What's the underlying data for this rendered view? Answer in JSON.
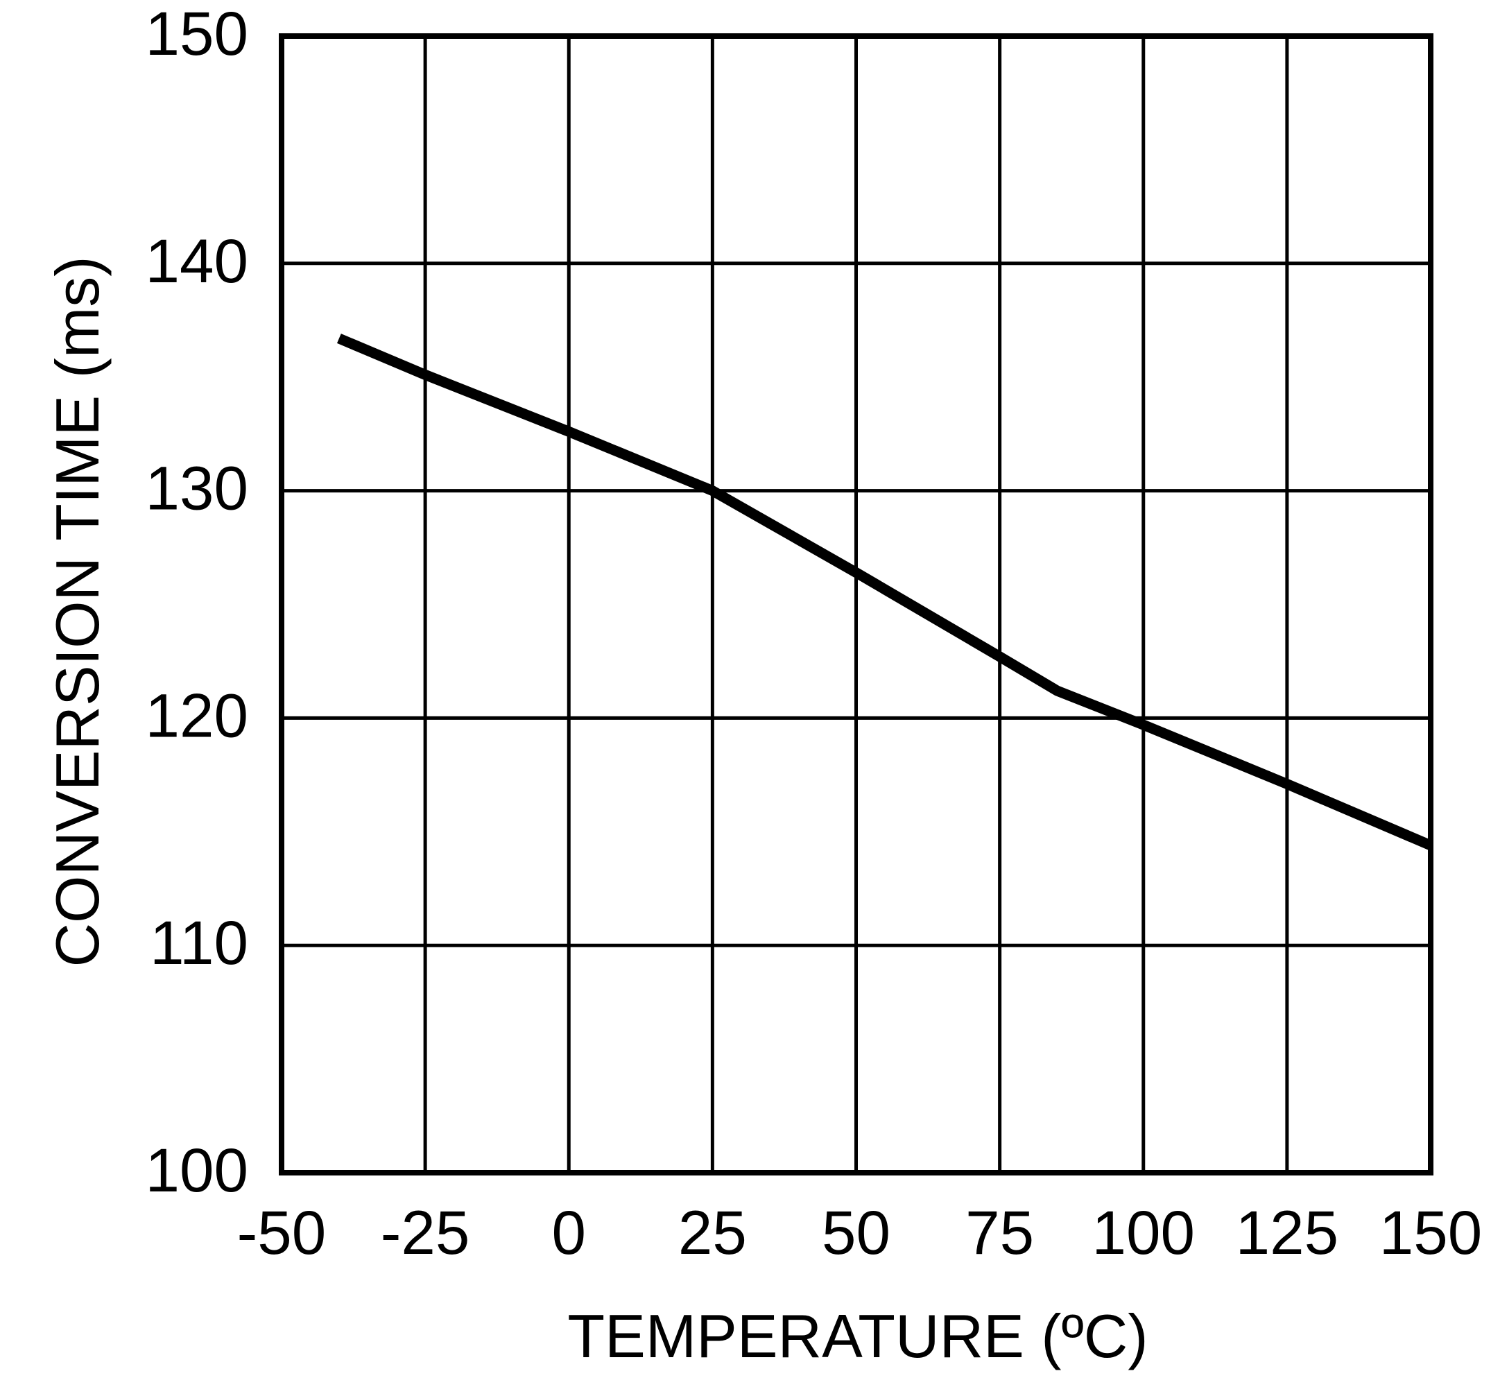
{
  "chart_data": {
    "type": "line",
    "title": "",
    "xlabel": "TEMPERATURE (ºC)",
    "ylabel": "CONVERSION TIME (ms)",
    "xlim": [
      -50,
      150
    ],
    "ylim": [
      100,
      150
    ],
    "x_ticks": [
      -50,
      -25,
      0,
      25,
      50,
      75,
      100,
      125,
      150
    ],
    "y_ticks": [
      100,
      110,
      120,
      130,
      140,
      150
    ],
    "x_tick_labels": [
      "-50",
      "-25",
      "0",
      "25",
      "50",
      "75",
      "100",
      "125",
      "150"
    ],
    "y_tick_labels": [
      "100",
      "110",
      "120",
      "130",
      "140",
      "150"
    ],
    "grid": true,
    "legend": null,
    "series": [
      {
        "name": "Conversion Time",
        "color": "#000000",
        "x": [
          -40,
          -25,
          0,
          25,
          50,
          75,
          85,
          100,
          125,
          150
        ],
        "y": [
          136.7,
          135.1,
          132.6,
          130.0,
          126.4,
          122.7,
          121.2,
          119.7,
          117.1,
          114.4
        ]
      }
    ]
  },
  "style": {
    "line_color": "#000000",
    "grid_color": "#000000",
    "background": "#ffffff"
  }
}
